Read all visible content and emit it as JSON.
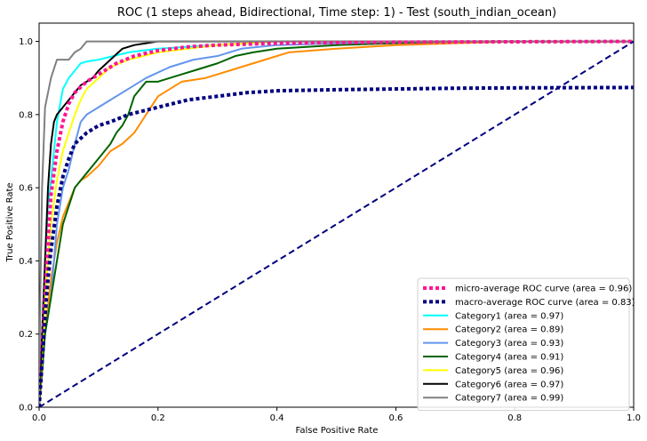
{
  "chart_data": {
    "type": "line",
    "title": "ROC (1 steps ahead, Bidirectional, Time step: 1) - Test (south_indian_ocean)",
    "xlabel": "False Positive Rate",
    "ylabel": "True Positive Rate",
    "xlim": [
      0,
      1
    ],
    "ylim": [
      0,
      1.05
    ],
    "xticks": [
      "0.0",
      "0.2",
      "0.4",
      "0.6",
      "0.8",
      "1.0"
    ],
    "yticks": [
      "0.0",
      "0.2",
      "0.4",
      "0.6",
      "0.8",
      "1.0"
    ],
    "grid": false,
    "legend_position": "lower-right",
    "diagonal": {
      "x": [
        0,
        1
      ],
      "y": [
        0,
        1
      ],
      "color": "#000080",
      "style": "dashed"
    },
    "series": [
      {
        "name": "micro-average ROC curve (area = 0.96)",
        "color": "#ff1493",
        "style": "dotted",
        "width": 4,
        "x": [
          0,
          0.005,
          0.01,
          0.015,
          0.02,
          0.03,
          0.04,
          0.05,
          0.06,
          0.08,
          0.1,
          0.13,
          0.16,
          0.2,
          0.25,
          0.3,
          0.4,
          0.6,
          0.8,
          1.0
        ],
        "y": [
          0,
          0.15,
          0.3,
          0.45,
          0.58,
          0.7,
          0.78,
          0.83,
          0.86,
          0.89,
          0.91,
          0.94,
          0.96,
          0.975,
          0.985,
          0.99,
          0.995,
          0.998,
          0.999,
          1.0
        ]
      },
      {
        "name": "macro-average ROC curve (area = 0.83)",
        "color": "#000080",
        "style": "dotted",
        "width": 4,
        "x": [
          0,
          0.005,
          0.01,
          0.015,
          0.02,
          0.03,
          0.04,
          0.05,
          0.06,
          0.08,
          0.1,
          0.12,
          0.15,
          0.2,
          0.25,
          0.3,
          0.35,
          0.4,
          0.5,
          0.6,
          0.7,
          0.8,
          1.0
        ],
        "y": [
          0,
          0.12,
          0.25,
          0.35,
          0.43,
          0.55,
          0.63,
          0.68,
          0.72,
          0.75,
          0.77,
          0.78,
          0.8,
          0.82,
          0.84,
          0.85,
          0.86,
          0.865,
          0.868,
          0.87,
          0.872,
          0.873,
          0.874
        ]
      },
      {
        "name": "Category1 (area = 0.97)",
        "color": "#00ffff",
        "style": "solid",
        "width": 2,
        "x": [
          0,
          0.005,
          0.01,
          0.015,
          0.02,
          0.03,
          0.04,
          0.05,
          0.06,
          0.07,
          0.08,
          0.1,
          0.15,
          0.2,
          0.3,
          0.4,
          1.0
        ],
        "y": [
          0,
          0.2,
          0.4,
          0.55,
          0.62,
          0.78,
          0.87,
          0.9,
          0.92,
          0.94,
          0.945,
          0.95,
          0.97,
          0.98,
          0.99,
          1.0,
          1.0
        ]
      },
      {
        "name": "Category2 (area = 0.89)",
        "color": "#ff8c00",
        "style": "solid",
        "width": 2,
        "x": [
          0,
          0.005,
          0.01,
          0.02,
          0.03,
          0.04,
          0.05,
          0.06,
          0.07,
          0.08,
          0.1,
          0.12,
          0.14,
          0.16,
          0.18,
          0.2,
          0.24,
          0.28,
          0.32,
          0.38,
          0.42,
          0.5,
          0.6,
          0.8,
          1.0
        ],
        "y": [
          0,
          0.1,
          0.2,
          0.35,
          0.45,
          0.52,
          0.56,
          0.6,
          0.62,
          0.63,
          0.66,
          0.7,
          0.72,
          0.75,
          0.8,
          0.85,
          0.89,
          0.9,
          0.92,
          0.95,
          0.97,
          0.98,
          0.99,
          1.0,
          1.0
        ]
      },
      {
        "name": "Category3 (area = 0.93)",
        "color": "#6495ed",
        "style": "solid",
        "width": 2,
        "x": [
          0,
          0.005,
          0.01,
          0.015,
          0.02,
          0.025,
          0.03,
          0.035,
          0.04,
          0.05,
          0.06,
          0.07,
          0.08,
          0.1,
          0.12,
          0.15,
          0.18,
          0.22,
          0.26,
          0.3,
          0.34,
          0.4,
          0.5,
          0.6,
          1.0
        ],
        "y": [
          0,
          0.12,
          0.2,
          0.25,
          0.3,
          0.4,
          0.5,
          0.55,
          0.6,
          0.65,
          0.72,
          0.78,
          0.8,
          0.82,
          0.84,
          0.87,
          0.9,
          0.93,
          0.95,
          0.96,
          0.98,
          0.99,
          0.995,
          1.0,
          1.0
        ]
      },
      {
        "name": "Category4 (area = 0.91)",
        "color": "#006400",
        "style": "solid",
        "width": 2,
        "x": [
          0,
          0.005,
          0.01,
          0.02,
          0.03,
          0.04,
          0.05,
          0.06,
          0.07,
          0.08,
          0.09,
          0.1,
          0.11,
          0.12,
          0.13,
          0.14,
          0.15,
          0.16,
          0.18,
          0.2,
          0.22,
          0.24,
          0.26,
          0.28,
          0.3,
          0.33,
          0.36,
          0.4,
          0.5,
          0.6,
          0.7,
          0.8,
          1.0
        ],
        "y": [
          0,
          0.1,
          0.2,
          0.3,
          0.4,
          0.5,
          0.55,
          0.6,
          0.62,
          0.64,
          0.66,
          0.68,
          0.7,
          0.72,
          0.75,
          0.77,
          0.8,
          0.85,
          0.89,
          0.89,
          0.9,
          0.91,
          0.92,
          0.93,
          0.94,
          0.96,
          0.97,
          0.98,
          0.99,
          0.995,
          1.0,
          1.0,
          1.0
        ]
      },
      {
        "name": "Category5 (area = 0.96)",
        "color": "#ffff00",
        "style": "solid",
        "width": 2,
        "x": [
          0,
          0.005,
          0.01,
          0.015,
          0.02,
          0.03,
          0.04,
          0.05,
          0.06,
          0.07,
          0.08,
          0.1,
          0.12,
          0.15,
          0.2,
          0.3,
          0.4,
          1.0
        ],
        "y": [
          0,
          0.15,
          0.3,
          0.4,
          0.5,
          0.62,
          0.7,
          0.75,
          0.8,
          0.84,
          0.87,
          0.9,
          0.93,
          0.95,
          0.97,
          0.99,
          1.0,
          1.0
        ]
      },
      {
        "name": "Category6 (area = 0.97)",
        "color": "#000000",
        "style": "solid",
        "width": 2,
        "x": [
          0,
          0.005,
          0.01,
          0.015,
          0.02,
          0.025,
          0.03,
          0.04,
          0.05,
          0.06,
          0.07,
          0.08,
          0.09,
          0.1,
          0.12,
          0.14,
          0.16,
          0.18,
          0.2,
          0.3,
          0.4,
          1.0
        ],
        "y": [
          0,
          0.2,
          0.4,
          0.6,
          0.72,
          0.78,
          0.8,
          0.82,
          0.84,
          0.86,
          0.88,
          0.89,
          0.9,
          0.92,
          0.95,
          0.98,
          0.99,
          0.995,
          1.0,
          1.0,
          1.0,
          1.0
        ]
      },
      {
        "name": "Category7 (area = 0.99)",
        "color": "#808080",
        "style": "solid",
        "width": 2,
        "x": [
          0,
          0.002,
          0.005,
          0.01,
          0.015,
          0.02,
          0.03,
          0.04,
          0.05,
          0.06,
          0.07,
          0.08,
          0.1,
          0.15,
          0.2,
          0.3,
          1.0
        ],
        "y": [
          0,
          0.3,
          0.6,
          0.82,
          0.86,
          0.9,
          0.95,
          0.95,
          0.95,
          0.97,
          0.98,
          1.0,
          1.0,
          1.0,
          1.0,
          1.0,
          1.0
        ]
      }
    ]
  }
}
